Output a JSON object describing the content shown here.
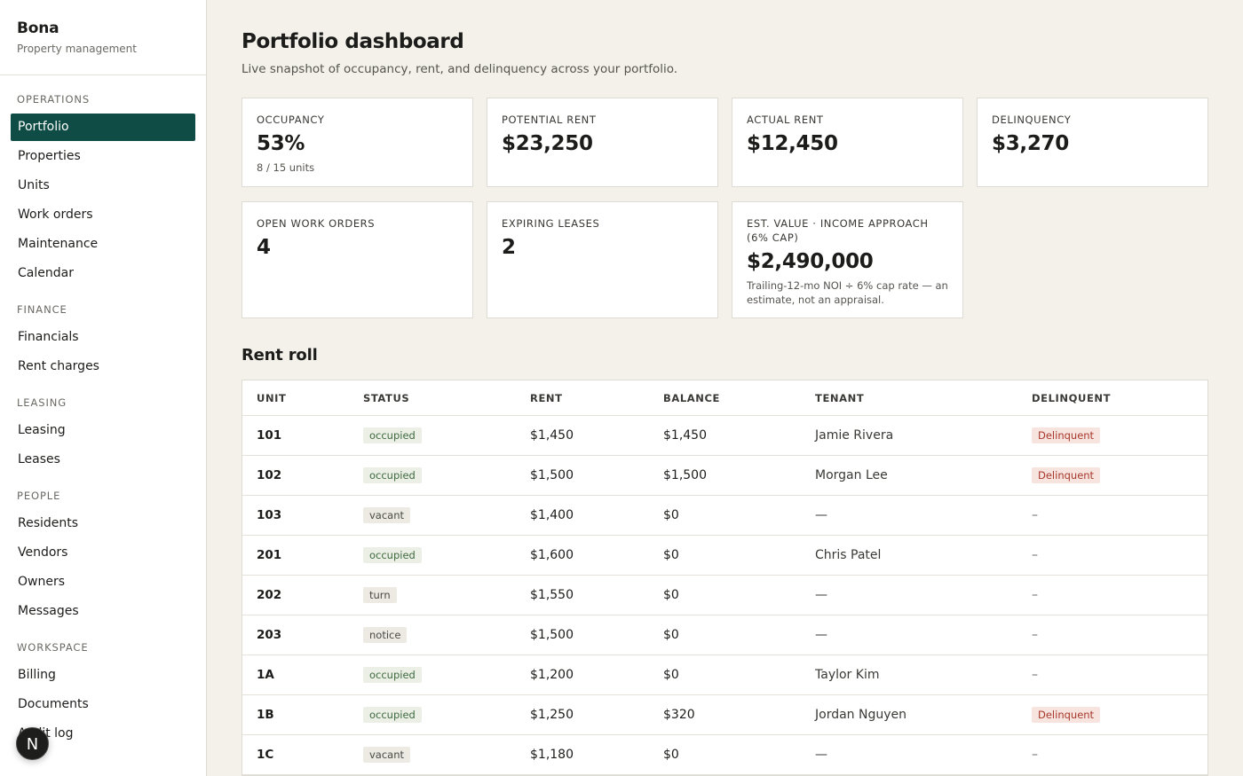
{
  "brand": {
    "name": "Bona",
    "subtitle": "Property management"
  },
  "sidebar": {
    "groups": [
      {
        "label": "OPERATIONS",
        "items": [
          "Portfolio",
          "Properties",
          "Units",
          "Work orders",
          "Maintenance",
          "Calendar"
        ]
      },
      {
        "label": "FINANCE",
        "items": [
          "Financials",
          "Rent charges"
        ]
      },
      {
        "label": "LEASING",
        "items": [
          "Leasing",
          "Leases"
        ]
      },
      {
        "label": "PEOPLE",
        "items": [
          "Residents",
          "Vendors",
          "Owners",
          "Messages"
        ]
      },
      {
        "label": "WORKSPACE",
        "items": [
          "Billing",
          "Documents",
          "Audit log"
        ]
      }
    ],
    "active": "Portfolio"
  },
  "avatar": {
    "initial": "N"
  },
  "header": {
    "title": "Portfolio dashboard",
    "subtitle": "Live snapshot of occupancy, rent, and delinquency across your portfolio."
  },
  "cards": {
    "occupancy": {
      "label": "OCCUPANCY",
      "value": "53%",
      "note": "8 / 15 units"
    },
    "potential_rent": {
      "label": "POTENTIAL RENT",
      "value": "$23,250"
    },
    "actual_rent": {
      "label": "ACTUAL RENT",
      "value": "$12,450"
    },
    "delinquency": {
      "label": "DELINQUENCY",
      "value": "$3,270"
    },
    "open_work_orders": {
      "label": "OPEN WORK ORDERS",
      "value": "4"
    },
    "expiring_leases": {
      "label": "EXPIRING LEASES",
      "value": "2"
    },
    "est_value": {
      "label": "EST. VALUE · INCOME APPROACH (6% CAP)",
      "value": "$2,490,000",
      "note": "Trailing-12-mo NOI ÷ 6% cap rate — an estimate, not an appraisal."
    }
  },
  "rent_roll": {
    "title": "Rent roll",
    "columns": [
      "UNIT",
      "STATUS",
      "RENT",
      "BALANCE",
      "TENANT",
      "DELINQUENT"
    ],
    "rows": [
      {
        "unit": "101",
        "status": "occupied",
        "rent": "$1,450",
        "balance": "$1,450",
        "tenant": "Jamie Rivera",
        "delinquent": "Delinquent"
      },
      {
        "unit": "102",
        "status": "occupied",
        "rent": "$1,500",
        "balance": "$1,500",
        "tenant": "Morgan Lee",
        "delinquent": "Delinquent"
      },
      {
        "unit": "103",
        "status": "vacant",
        "rent": "$1,400",
        "balance": "$0",
        "tenant": "—",
        "delinquent": "–"
      },
      {
        "unit": "201",
        "status": "occupied",
        "rent": "$1,600",
        "balance": "$0",
        "tenant": "Chris Patel",
        "delinquent": "–"
      },
      {
        "unit": "202",
        "status": "turn",
        "rent": "$1,550",
        "balance": "$0",
        "tenant": "—",
        "delinquent": "–"
      },
      {
        "unit": "203",
        "status": "notice",
        "rent": "$1,500",
        "balance": "$0",
        "tenant": "—",
        "delinquent": "–"
      },
      {
        "unit": "1A",
        "status": "occupied",
        "rent": "$1,200",
        "balance": "$0",
        "tenant": "Taylor Kim",
        "delinquent": "–"
      },
      {
        "unit": "1B",
        "status": "occupied",
        "rent": "$1,250",
        "balance": "$320",
        "tenant": "Jordan Nguyen",
        "delinquent": "Delinquent"
      },
      {
        "unit": "1C",
        "status": "vacant",
        "rent": "$1,180",
        "balance": "$0",
        "tenant": "—",
        "delinquent": "–"
      }
    ]
  }
}
